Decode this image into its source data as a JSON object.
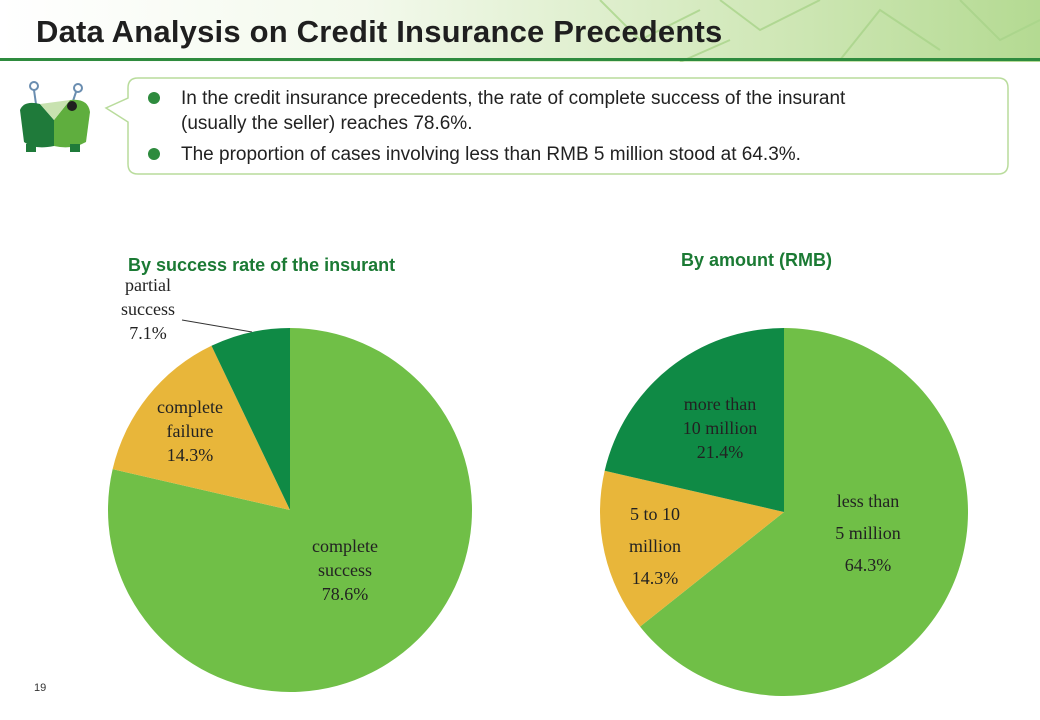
{
  "header": {
    "title": "Data Analysis on Credit Insurance Precedents"
  },
  "bullets": [
    "In the credit insurance precedents, the rate of complete success of the insurant (usually the seller) reaches 78.6%.",
    "The proportion of cases involving less than RMB 5 million stood at 64.3%."
  ],
  "colors": {
    "accent": "#2e8b3e",
    "light_green": "#70bf47",
    "dark_green": "#0f8a45",
    "yellow": "#e8b63a"
  },
  "chart_data": [
    {
      "type": "pie",
      "title": "By success rate of the insurant",
      "slices": [
        {
          "label": [
            "complete",
            "success",
            "78.6%"
          ],
          "value": 78.6,
          "color": "#70bf47"
        },
        {
          "label": [
            "complete",
            "failure",
            "14.3%"
          ],
          "value": 14.3,
          "color": "#e8b63a"
        },
        {
          "label": [
            "partial",
            "success",
            "7.1%"
          ],
          "value": 7.1,
          "color": "#0f8a45"
        }
      ]
    },
    {
      "type": "pie",
      "title": "By amount  (RMB)",
      "slices": [
        {
          "label": [
            "less than",
            "5 million",
            "64.3%"
          ],
          "value": 64.3,
          "color": "#70bf47"
        },
        {
          "label": [
            "5 to 10",
            "million",
            "14.3%"
          ],
          "value": 14.3,
          "color": "#e8b63a"
        },
        {
          "label": [
            "more than",
            "10 million",
            "21.4%"
          ],
          "value": 21.4,
          "color": "#0f8a45"
        }
      ]
    }
  ],
  "footer": {
    "page_number": "19"
  }
}
